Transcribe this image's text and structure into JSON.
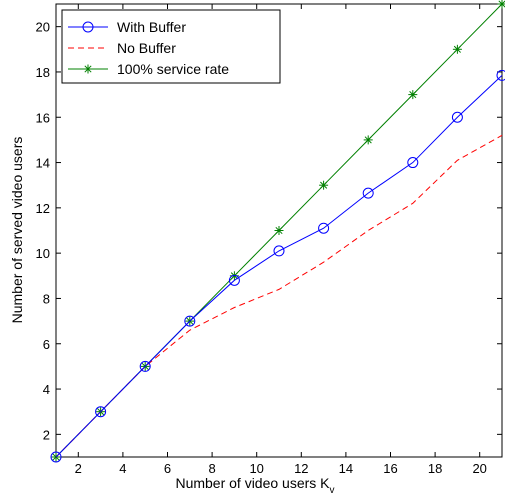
{
  "chart_data": {
    "type": "line",
    "xlabel": "Number of video users K",
    "xlabel_subscript": "v",
    "ylabel": "Number of served video users",
    "xlim": [
      1,
      21
    ],
    "ylim": [
      1,
      21
    ],
    "xticks": [
      2,
      4,
      6,
      8,
      10,
      12,
      14,
      16,
      18,
      20
    ],
    "yticks": [
      2,
      4,
      6,
      8,
      10,
      12,
      14,
      16,
      18,
      20
    ],
    "grid": false,
    "legend_position": "top-left",
    "series": [
      {
        "name": "With Buffer",
        "color": "#0000ff",
        "line_style": "solid",
        "marker": "circle",
        "x": [
          1,
          3,
          5,
          7,
          9,
          11,
          13,
          15,
          17,
          19,
          21
        ],
        "y": [
          1,
          3,
          5,
          7,
          8.8,
          10.1,
          11.1,
          12.65,
          14.0,
          16.0,
          17.85
        ]
      },
      {
        "name": "No Buffer",
        "color": "#ff0000",
        "line_style": "dashed",
        "marker": "none",
        "x": [
          1,
          3,
          5,
          7,
          9,
          11,
          13,
          15,
          17,
          19,
          21
        ],
        "y": [
          1,
          3,
          5,
          6.6,
          7.6,
          8.4,
          9.6,
          11.0,
          12.2,
          14.1,
          15.2
        ]
      },
      {
        "name": "100% service rate",
        "color": "#008000",
        "line_style": "solid",
        "marker": "asterisk",
        "x": [
          1,
          3,
          5,
          7,
          9,
          11,
          13,
          15,
          17,
          19,
          21
        ],
        "y": [
          1,
          3,
          5,
          7,
          9,
          11,
          13,
          15,
          17,
          19,
          21
        ]
      }
    ]
  }
}
